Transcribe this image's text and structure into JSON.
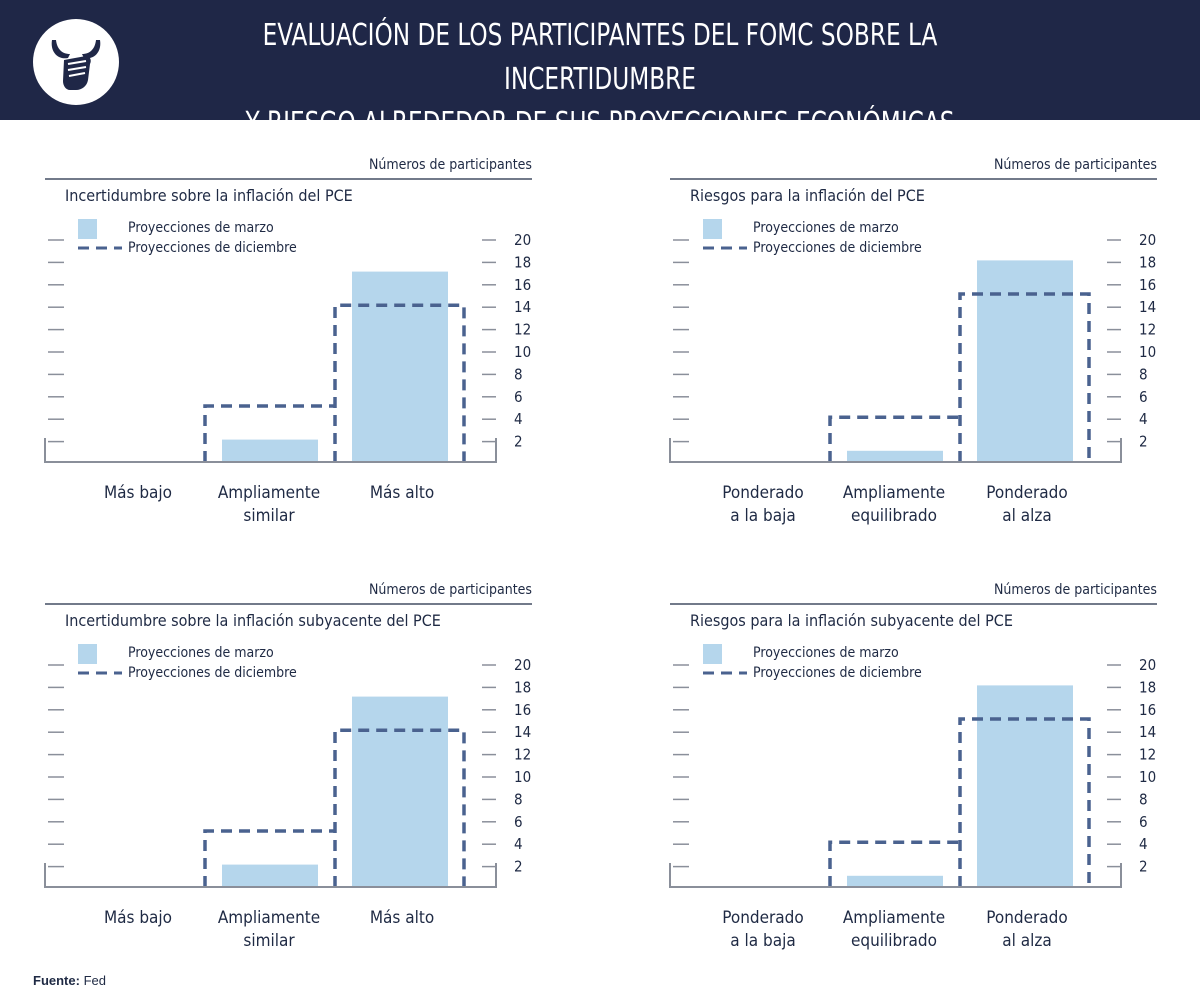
{
  "header": {
    "title_line1": "EVALUACIÓN DE LOS PARTICIPANTES DEL FOMC SOBRE LA INCERTIDUMBRE",
    "title_line2": "Y RIESGO ALREDEDOR DE SUS PROYECCIONES ECONÓMICAS",
    "logo_icon": "bull-fist-icon",
    "bg_color": "#1f2747"
  },
  "source": {
    "label": "Fuente:",
    "value": "Fed"
  },
  "colors": {
    "bar": "#b5d6ec",
    "dashed": "#4a628f",
    "axis": "#8a8f9a",
    "text": "#1f2a44"
  },
  "chart_data": [
    {
      "type": "bar",
      "title": "Incertidumbre sobre la inflación del PCE",
      "unit_label": "Números de participantes",
      "legend": [
        "Proyecciones de marzo",
        "Proyecciones de diciembre"
      ],
      "categories": [
        [
          "Más bajo"
        ],
        [
          "Ampliamente",
          "similar"
        ],
        [
          "Más alto"
        ]
      ],
      "series": [
        {
          "name": "Proyecciones de marzo",
          "style": "bar",
          "values": [
            0,
            2,
            17
          ]
        },
        {
          "name": "Proyecciones de diciembre",
          "style": "dashed-step",
          "values": [
            0,
            5,
            14
          ]
        }
      ],
      "yticks": [
        2,
        4,
        6,
        8,
        10,
        12,
        14,
        16,
        18,
        20
      ],
      "ylim": [
        0,
        20
      ]
    },
    {
      "type": "bar",
      "title": "Riesgos para la inflación del PCE",
      "unit_label": "Números de participantes",
      "legend": [
        "Proyecciones de marzo",
        "Proyecciones de diciembre"
      ],
      "categories": [
        [
          "Ponderado",
          "a la baja"
        ],
        [
          "Ampliamente",
          "equilibrado"
        ],
        [
          "Ponderado",
          "al alza"
        ]
      ],
      "series": [
        {
          "name": "Proyecciones de marzo",
          "style": "bar",
          "values": [
            0,
            1,
            18
          ]
        },
        {
          "name": "Proyecciones de diciembre",
          "style": "dashed-step",
          "values": [
            0,
            4,
            15
          ]
        }
      ],
      "yticks": [
        2,
        4,
        6,
        8,
        10,
        12,
        14,
        16,
        18,
        20
      ],
      "ylim": [
        0,
        20
      ]
    },
    {
      "type": "bar",
      "title": "Incertidumbre sobre la inflación subyacente del PCE",
      "unit_label": "Números de participantes",
      "legend": [
        "Proyecciones de marzo",
        "Proyecciones de diciembre"
      ],
      "categories": [
        [
          "Más bajo"
        ],
        [
          "Ampliamente",
          "similar"
        ],
        [
          "Más alto"
        ]
      ],
      "series": [
        {
          "name": "Proyecciones de marzo",
          "style": "bar",
          "values": [
            0,
            2,
            17
          ]
        },
        {
          "name": "Proyecciones de diciembre",
          "style": "dashed-step",
          "values": [
            0,
            5,
            14
          ]
        }
      ],
      "yticks": [
        2,
        4,
        6,
        8,
        10,
        12,
        14,
        16,
        18,
        20
      ],
      "ylim": [
        0,
        20
      ]
    },
    {
      "type": "bar",
      "title": "Riesgos para la inflación subyacente del PCE",
      "unit_label": "Números de participantes",
      "legend": [
        "Proyecciones de marzo",
        "Proyecciones de diciembre"
      ],
      "categories": [
        [
          "Ponderado",
          "a la baja"
        ],
        [
          "Ampliamente",
          "equilibrado"
        ],
        [
          "Ponderado",
          "al alza"
        ]
      ],
      "series": [
        {
          "name": "Proyecciones de marzo",
          "style": "bar",
          "values": [
            0,
            1,
            18
          ]
        },
        {
          "name": "Proyecciones de diciembre",
          "style": "dashed-step",
          "values": [
            0,
            4,
            15
          ]
        }
      ],
      "yticks": [
        2,
        4,
        6,
        8,
        10,
        12,
        14,
        16,
        18,
        20
      ],
      "ylim": [
        0,
        20
      ]
    }
  ]
}
